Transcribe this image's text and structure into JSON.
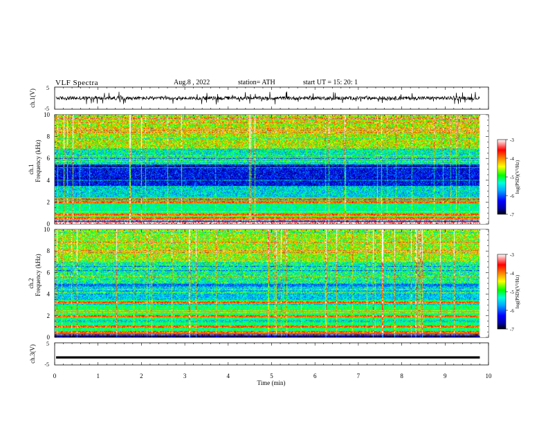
{
  "header": {
    "title": "VLF  Spectra",
    "date": "Aug.8  , 2022",
    "station": "station= ATH",
    "start": "start  UT  =    15: 20: 1"
  },
  "chart_data": [
    {
      "type": "line",
      "panel": "ch1-waveform",
      "ylabel": "ch.1(V)",
      "ylim": [
        -5,
        5
      ],
      "yticks": [
        "5",
        "-5"
      ],
      "xlim": [
        0,
        10
      ],
      "description_level": 0.0
    },
    {
      "type": "heatmap",
      "panel": "ch1-spectrogram",
      "ylabel": "ch.1\nFrequency  (kHz)",
      "ylabel_line1": "ch.1",
      "ylabel_line2": "Frequency  (kHz)",
      "ylim": [
        0,
        10
      ],
      "yticks": [
        "0",
        "2",
        "4",
        "6",
        "8",
        "10"
      ],
      "xlim": [
        0,
        9.8
      ],
      "colorbar": {
        "label": "log(PSD)(V²/Hz)",
        "min": -7,
        "max": -3,
        "ticks": [
          "-3",
          "-4",
          "-5",
          "-6",
          "-7"
        ]
      }
    },
    {
      "type": "heatmap",
      "panel": "ch2-spectrogram",
      "ylabel_line1": "ch.2",
      "ylabel_line2": "Frequency  (kHz)",
      "ylim": [
        0,
        10
      ],
      "yticks": [
        "0",
        "2",
        "4",
        "6",
        "8",
        "10"
      ],
      "xlim": [
        0,
        9.8
      ],
      "colorbar": {
        "label": "log(PSD)(V²/Hz)",
        "min": -7,
        "max": -3,
        "ticks": [
          "-3",
          "-4",
          "-5",
          "-6",
          "-7"
        ]
      }
    },
    {
      "type": "line",
      "panel": "ch3-waveform",
      "ylabel": "ch.3(V)",
      "ylim": [
        -5,
        5
      ],
      "yticks": [
        "5",
        "-5"
      ],
      "xlim": [
        0,
        10
      ],
      "level": -1.6
    }
  ],
  "xaxis": {
    "label": "Time  (min)",
    "ticks": [
      "0",
      "1",
      "2",
      "3",
      "4",
      "5",
      "6",
      "7",
      "8",
      "9",
      "10"
    ],
    "range": [
      0,
      10
    ]
  },
  "colors": {
    "colormap": [
      "#000000",
      "#0000aa",
      "#0000ff",
      "#00aaff",
      "#00ffdd",
      "#00ff00",
      "#ffff00",
      "#ff7700",
      "#ff0000",
      "#ffffff"
    ],
    "axis": "#000000",
    "background": "#ffffff"
  }
}
